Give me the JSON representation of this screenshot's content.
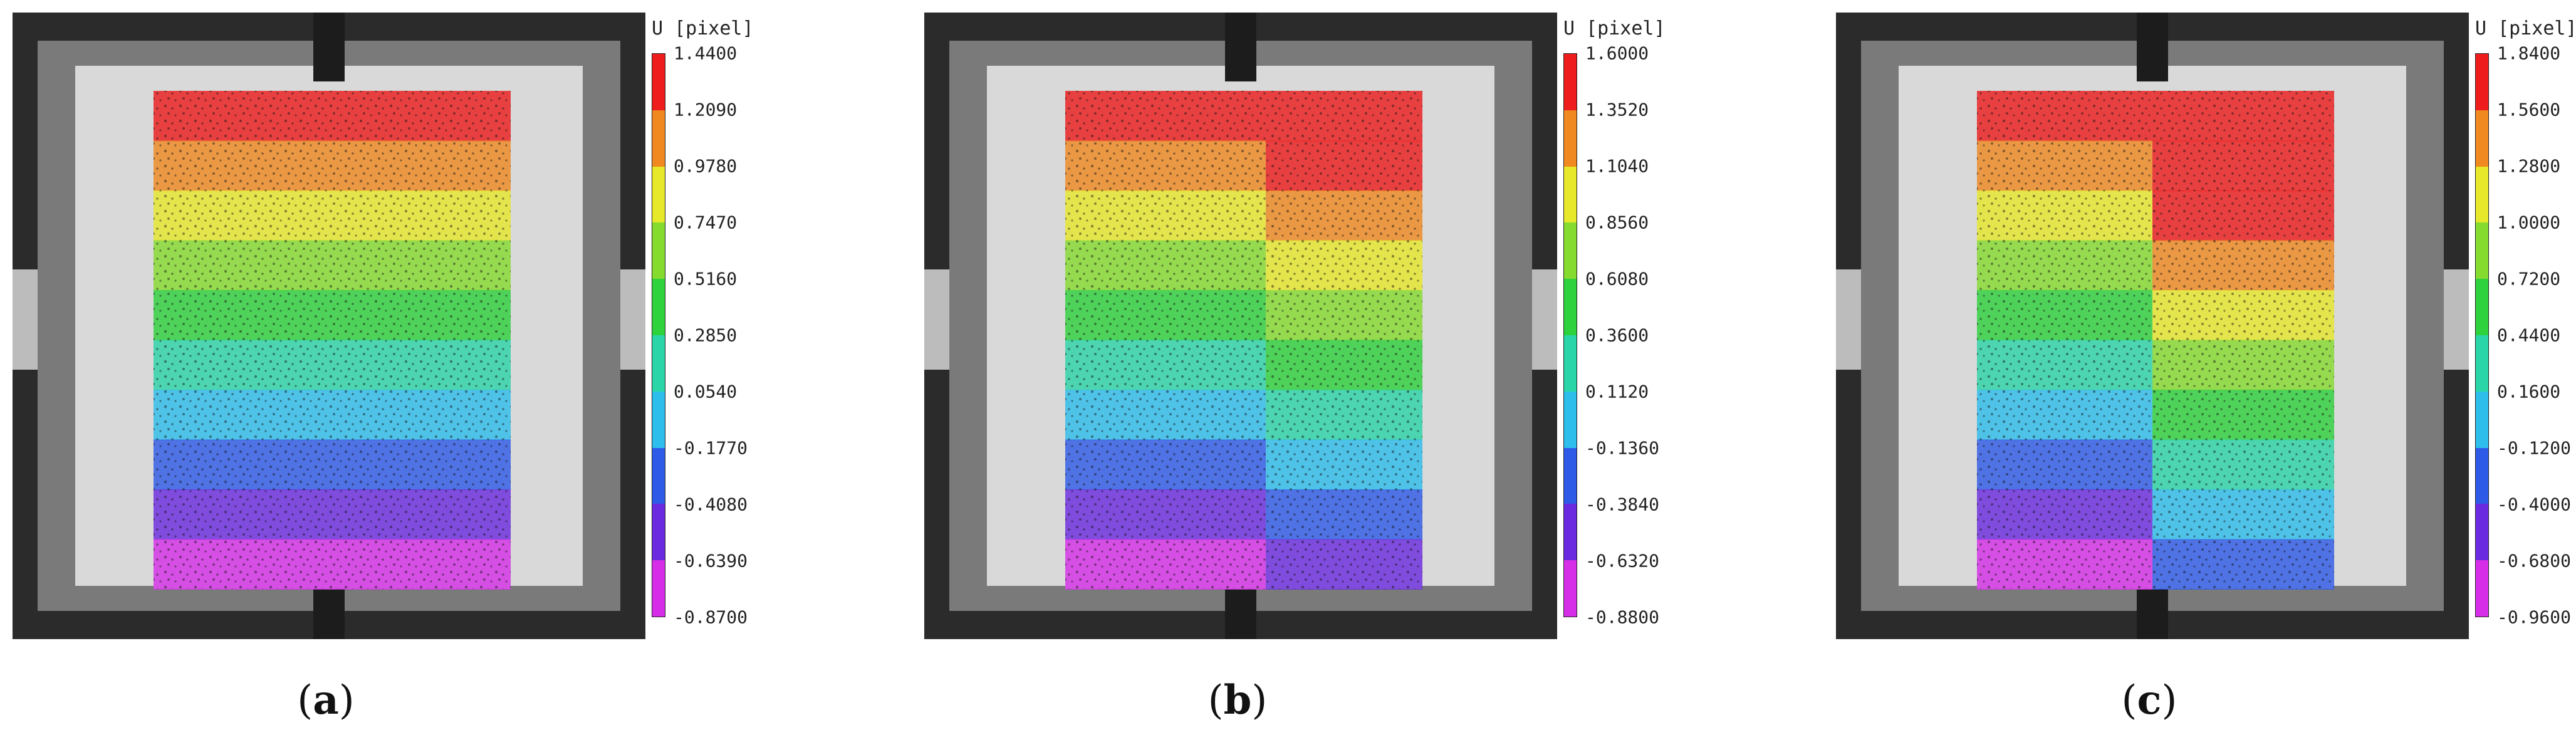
{
  "panels": [
    {
      "caption_open": "(",
      "caption_letter": "a",
      "caption_close": ")",
      "colorbar_title": "U [pixel]",
      "ticks": [
        "1.4400",
        "1.2090",
        "0.9780",
        "0.7470",
        "0.5160",
        "0.2850",
        "0.0540",
        "-0.1770",
        "-0.4080",
        "-0.6390",
        "-0.8700"
      ]
    },
    {
      "caption_open": "(",
      "caption_letter": "b",
      "caption_close": ")",
      "colorbar_title": "U [pixel]",
      "ticks": [
        "1.6000",
        "1.3520",
        "1.1040",
        "0.8560",
        "0.6080",
        "0.3600",
        "0.1120",
        "-0.1360",
        "-0.3840",
        "-0.6320",
        "-0.8800"
      ]
    },
    {
      "caption_open": "(",
      "caption_letter": "c",
      "caption_close": ")",
      "colorbar_title": "U [pixel]",
      "ticks": [
        "1.8400",
        "1.5600",
        "1.2800",
        "1.0000",
        "0.7200",
        "0.4400",
        "0.1600",
        "-0.1200",
        "-0.4000",
        "-0.6800",
        "-0.9600"
      ]
    }
  ],
  "colormap": [
    "#ee1c1c",
    "#f08a20",
    "#e8e82a",
    "#86dc2e",
    "#2ed23c",
    "#2ad6a8",
    "#2ebeec",
    "#2e5ae8",
    "#6a2ae0",
    "#d62ee8"
  ]
}
